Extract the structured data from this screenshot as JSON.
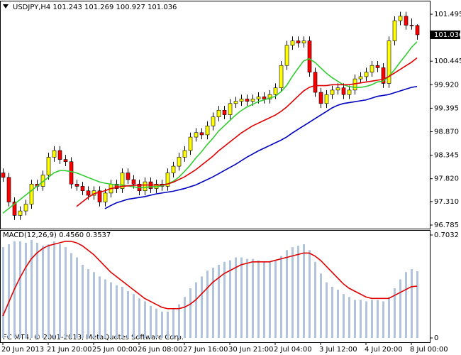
{
  "chart_data": [
    {
      "type": "candlestick",
      "title": "USDJPY,H4  101.243 101.269 100.927 101.036",
      "categories": [
        "20 Jun 2013",
        null,
        null,
        null,
        null,
        null,
        null,
        null,
        "21 Jun 20:00",
        null,
        null,
        null,
        null,
        null,
        null,
        null,
        "25 Jun 00:00",
        null,
        null,
        null,
        null,
        null,
        null,
        null,
        "26 Jun 08:00",
        null,
        null,
        null,
        null,
        null,
        null,
        null,
        "27 Jun 16:00",
        null,
        null,
        null,
        null,
        null,
        null,
        null,
        "30 Jun 21:00",
        null,
        null,
        null,
        null,
        null,
        null,
        null,
        "2 Jul 04:00",
        null,
        null,
        null,
        null,
        null,
        null,
        null,
        "3 Jul 12:00",
        null,
        null,
        null,
        null,
        null,
        null,
        null,
        "4 Jul 20:00",
        null,
        null,
        null,
        null,
        null,
        null,
        null,
        "8 Jul 00:00",
        null
      ],
      "open": [
        97.95,
        97.85,
        97.3,
        97.0,
        97.1,
        97.25,
        97.7,
        97.65,
        97.9,
        98.3,
        98.45,
        98.25,
        98.2,
        97.7,
        97.65,
        97.55,
        97.45,
        97.55,
        97.3,
        97.5,
        97.7,
        97.6,
        97.95,
        97.8,
        97.7,
        97.55,
        97.75,
        97.6,
        97.7,
        97.65,
        97.95,
        98.1,
        98.3,
        98.45,
        98.75,
        98.85,
        98.8,
        99.0,
        99.2,
        99.35,
        99.25,
        99.5,
        99.55,
        99.6,
        99.55,
        99.6,
        99.65,
        99.6,
        99.7,
        99.85,
        100.35,
        100.8,
        100.9,
        100.85,
        100.9,
        100.2,
        99.75,
        99.5,
        99.7,
        99.8,
        99.85,
        99.7,
        99.8,
        100.05,
        100.1,
        100.2,
        100.35,
        100.3,
        99.95,
        100.9,
        101.35,
        101.45,
        101.25,
        101.243
      ],
      "high": [
        98.05,
        97.95,
        97.4,
        97.2,
        97.35,
        97.8,
        97.8,
        98.0,
        98.4,
        98.55,
        98.55,
        98.35,
        98.3,
        97.8,
        97.75,
        97.65,
        97.65,
        97.65,
        97.6,
        97.8,
        97.8,
        98.05,
        98.05,
        97.9,
        97.8,
        97.85,
        97.85,
        97.8,
        97.8,
        98.05,
        98.2,
        98.4,
        98.55,
        98.85,
        98.95,
        98.95,
        99.1,
        99.3,
        99.45,
        99.45,
        99.6,
        99.65,
        99.7,
        99.7,
        99.7,
        99.75,
        99.75,
        99.8,
        99.95,
        100.45,
        100.9,
        101.0,
        101.0,
        101.0,
        101.0,
        100.3,
        99.85,
        99.8,
        99.9,
        99.95,
        99.95,
        99.9,
        100.15,
        100.2,
        100.3,
        100.45,
        100.45,
        100.4,
        101.0,
        101.45,
        101.55,
        101.55,
        101.4,
        101.269
      ],
      "low": [
        97.75,
        97.2,
        96.9,
        96.9,
        97.0,
        97.15,
        97.55,
        97.55,
        97.8,
        98.2,
        98.15,
        98.1,
        97.6,
        97.55,
        97.45,
        97.35,
        97.35,
        97.2,
        97.2,
        97.4,
        97.5,
        97.5,
        97.7,
        97.6,
        97.45,
        97.45,
        97.5,
        97.5,
        97.55,
        97.55,
        97.85,
        98.0,
        98.2,
        98.35,
        98.65,
        98.7,
        98.7,
        98.9,
        99.1,
        99.15,
        99.15,
        99.4,
        99.45,
        99.45,
        99.45,
        99.5,
        99.5,
        99.5,
        99.6,
        99.75,
        100.25,
        100.7,
        100.75,
        100.75,
        100.1,
        99.65,
        99.4,
        99.4,
        99.6,
        99.7,
        99.6,
        99.6,
        99.7,
        99.95,
        100.0,
        100.1,
        100.2,
        99.85,
        99.85,
        100.8,
        101.25,
        101.15,
        101.15,
        100.927
      ],
      "close": [
        97.85,
        97.3,
        97.0,
        97.1,
        97.25,
        97.7,
        97.65,
        97.9,
        98.3,
        98.45,
        98.25,
        98.2,
        97.7,
        97.65,
        97.55,
        97.45,
        97.55,
        97.3,
        97.5,
        97.7,
        97.6,
        97.95,
        97.8,
        97.7,
        97.55,
        97.75,
        97.6,
        97.7,
        97.65,
        97.95,
        98.1,
        98.3,
        98.45,
        98.75,
        98.85,
        98.8,
        99.0,
        99.2,
        99.35,
        99.25,
        99.5,
        99.55,
        99.6,
        99.55,
        99.6,
        99.65,
        99.6,
        99.7,
        99.85,
        100.35,
        100.8,
        100.9,
        100.85,
        100.9,
        100.2,
        99.75,
        99.5,
        99.7,
        99.8,
        99.85,
        99.7,
        99.8,
        100.05,
        100.1,
        100.2,
        100.35,
        100.3,
        99.95,
        100.9,
        101.35,
        101.45,
        101.25,
        101.243,
        101.036
      ],
      "up_color": "#ffff00",
      "down_color": "#ff0000",
      "series": [
        {
          "color": "#32cd32",
          "values": [
            97.05,
            97.15,
            97.25,
            97.35,
            97.45,
            97.55,
            97.65,
            97.75,
            97.85,
            97.95,
            98.0,
            98.0,
            97.98,
            97.95,
            97.9,
            97.85,
            97.8,
            97.75,
            97.72,
            97.7,
            97.68,
            97.68,
            97.66,
            97.64,
            97.62,
            97.62,
            97.64,
            97.64,
            97.66,
            97.7,
            97.76,
            97.85,
            97.98,
            98.12,
            98.28,
            98.42,
            98.58,
            98.72,
            98.88,
            99.0,
            99.12,
            99.24,
            99.34,
            99.42,
            99.48,
            99.54,
            99.58,
            99.62,
            99.66,
            99.76,
            99.9,
            100.1,
            100.28,
            100.45,
            100.5,
            100.42,
            100.3,
            100.18,
            100.08,
            100.0,
            99.92,
            99.88,
            99.86,
            99.86,
            99.88,
            99.92,
            99.98,
            100.0,
            100.1,
            100.25,
            100.42,
            100.58,
            100.75,
            100.88
          ]
        },
        {
          "color": "#e00000",
          "values": [
            null,
            null,
            null,
            null,
            null,
            null,
            null,
            null,
            null,
            null,
            null,
            null,
            null,
            97.2,
            97.3,
            97.4,
            97.48,
            97.52,
            97.55,
            97.6,
            97.62,
            97.65,
            97.66,
            97.67,
            97.68,
            97.68,
            97.68,
            97.68,
            97.68,
            97.7,
            97.74,
            97.8,
            97.86,
            97.94,
            98.02,
            98.12,
            98.22,
            98.32,
            98.44,
            98.54,
            98.64,
            98.74,
            98.84,
            98.92,
            99.0,
            99.06,
            99.12,
            99.18,
            99.24,
            99.32,
            99.42,
            99.54,
            99.66,
            99.78,
            99.86,
            99.9,
            99.9,
            99.9,
            99.92,
            99.92,
            99.92,
            99.92,
            99.94,
            99.96,
            99.98,
            100.0,
            100.02,
            100.04,
            100.1,
            100.18,
            100.26,
            100.34,
            100.42,
            100.52
          ]
        },
        {
          "color": "#0000c0",
          "values": [
            null,
            null,
            null,
            null,
            null,
            null,
            null,
            null,
            null,
            null,
            null,
            null,
            null,
            null,
            null,
            null,
            null,
            null,
            97.15,
            97.22,
            97.28,
            97.32,
            97.36,
            97.38,
            97.4,
            97.42,
            97.45,
            97.48,
            97.5,
            97.52,
            97.54,
            97.57,
            97.6,
            97.64,
            97.68,
            97.74,
            97.8,
            97.86,
            97.93,
            98.0,
            98.07,
            98.14,
            98.22,
            98.3,
            98.37,
            98.44,
            98.5,
            98.56,
            98.62,
            98.68,
            98.75,
            98.84,
            98.92,
            99.0,
            99.08,
            99.16,
            99.24,
            99.32,
            99.4,
            99.46,
            99.5,
            99.52,
            99.54,
            99.56,
            99.58,
            99.62,
            99.66,
            99.68,
            99.7,
            99.74,
            99.78,
            99.82,
            99.86,
            99.88
          ]
        }
      ],
      "ylim": [
        96.705,
        101.781
      ],
      "yticks": [
        101.495,
        100.445,
        {
          "value": 99.92,
          "label": "99.920"
        },
        99.395,
        {
          "value": 98.87,
          "label": "98.870"
        },
        98.345,
        {
          "value": 97.82,
          "label": "97.820"
        },
        {
          "value": 97.31,
          "label": "97.310"
        },
        96.785
      ]
    },
    {
      "type": "macd",
      "title": "MACD(12,26,9) 0.4560 0.3537",
      "annotation": "FC MT4, © 2001-2013, MetaQuotes Software Corp.",
      "series": [
        {
          "type": "bar",
          "color": "#b0c4de",
          "values": [
            0.62,
            0.64,
            0.66,
            0.66,
            0.65,
            0.67,
            0.65,
            0.63,
            0.64,
            0.66,
            0.64,
            0.62,
            0.58,
            0.55,
            0.5,
            0.47,
            0.45,
            0.42,
            0.4,
            0.38,
            0.36,
            0.35,
            0.32,
            0.3,
            0.27,
            0.25,
            0.22,
            0.2,
            0.18,
            0.18,
            0.2,
            0.23,
            0.28,
            0.34,
            0.38,
            0.42,
            0.46,
            0.48,
            0.5,
            0.52,
            0.53,
            0.55,
            0.55,
            0.54,
            0.54,
            0.53,
            0.52,
            0.52,
            0.53,
            0.56,
            0.6,
            0.62,
            0.63,
            0.64,
            0.6,
            0.52,
            0.44,
            0.38,
            0.35,
            0.33,
            0.3,
            0.28,
            0.26,
            0.26,
            0.25,
            0.26,
            0.26,
            0.25,
            0.28,
            0.34,
            0.4,
            0.45,
            0.47,
            0.456
          ]
        },
        {
          "type": "line",
          "color": "#e00000",
          "values": [
            0.15,
            0.24,
            0.33,
            0.41,
            0.48,
            0.54,
            0.58,
            0.61,
            0.63,
            0.64,
            0.65,
            0.66,
            0.66,
            0.65,
            0.63,
            0.6,
            0.57,
            0.53,
            0.49,
            0.45,
            0.42,
            0.39,
            0.36,
            0.33,
            0.3,
            0.27,
            0.25,
            0.23,
            0.21,
            0.2,
            0.2,
            0.2,
            0.21,
            0.23,
            0.26,
            0.3,
            0.34,
            0.38,
            0.41,
            0.44,
            0.46,
            0.48,
            0.5,
            0.51,
            0.52,
            0.52,
            0.52,
            0.52,
            0.53,
            0.54,
            0.55,
            0.56,
            0.57,
            0.58,
            0.58,
            0.56,
            0.53,
            0.49,
            0.45,
            0.41,
            0.37,
            0.34,
            0.32,
            0.3,
            0.28,
            0.27,
            0.27,
            0.27,
            0.27,
            0.29,
            0.31,
            0.33,
            0.35,
            0.3537
          ]
        }
      ],
      "ylim": [
        -0.0291,
        0.7323
      ],
      "yticks": [
        0.7032,
        0
      ]
    }
  ]
}
